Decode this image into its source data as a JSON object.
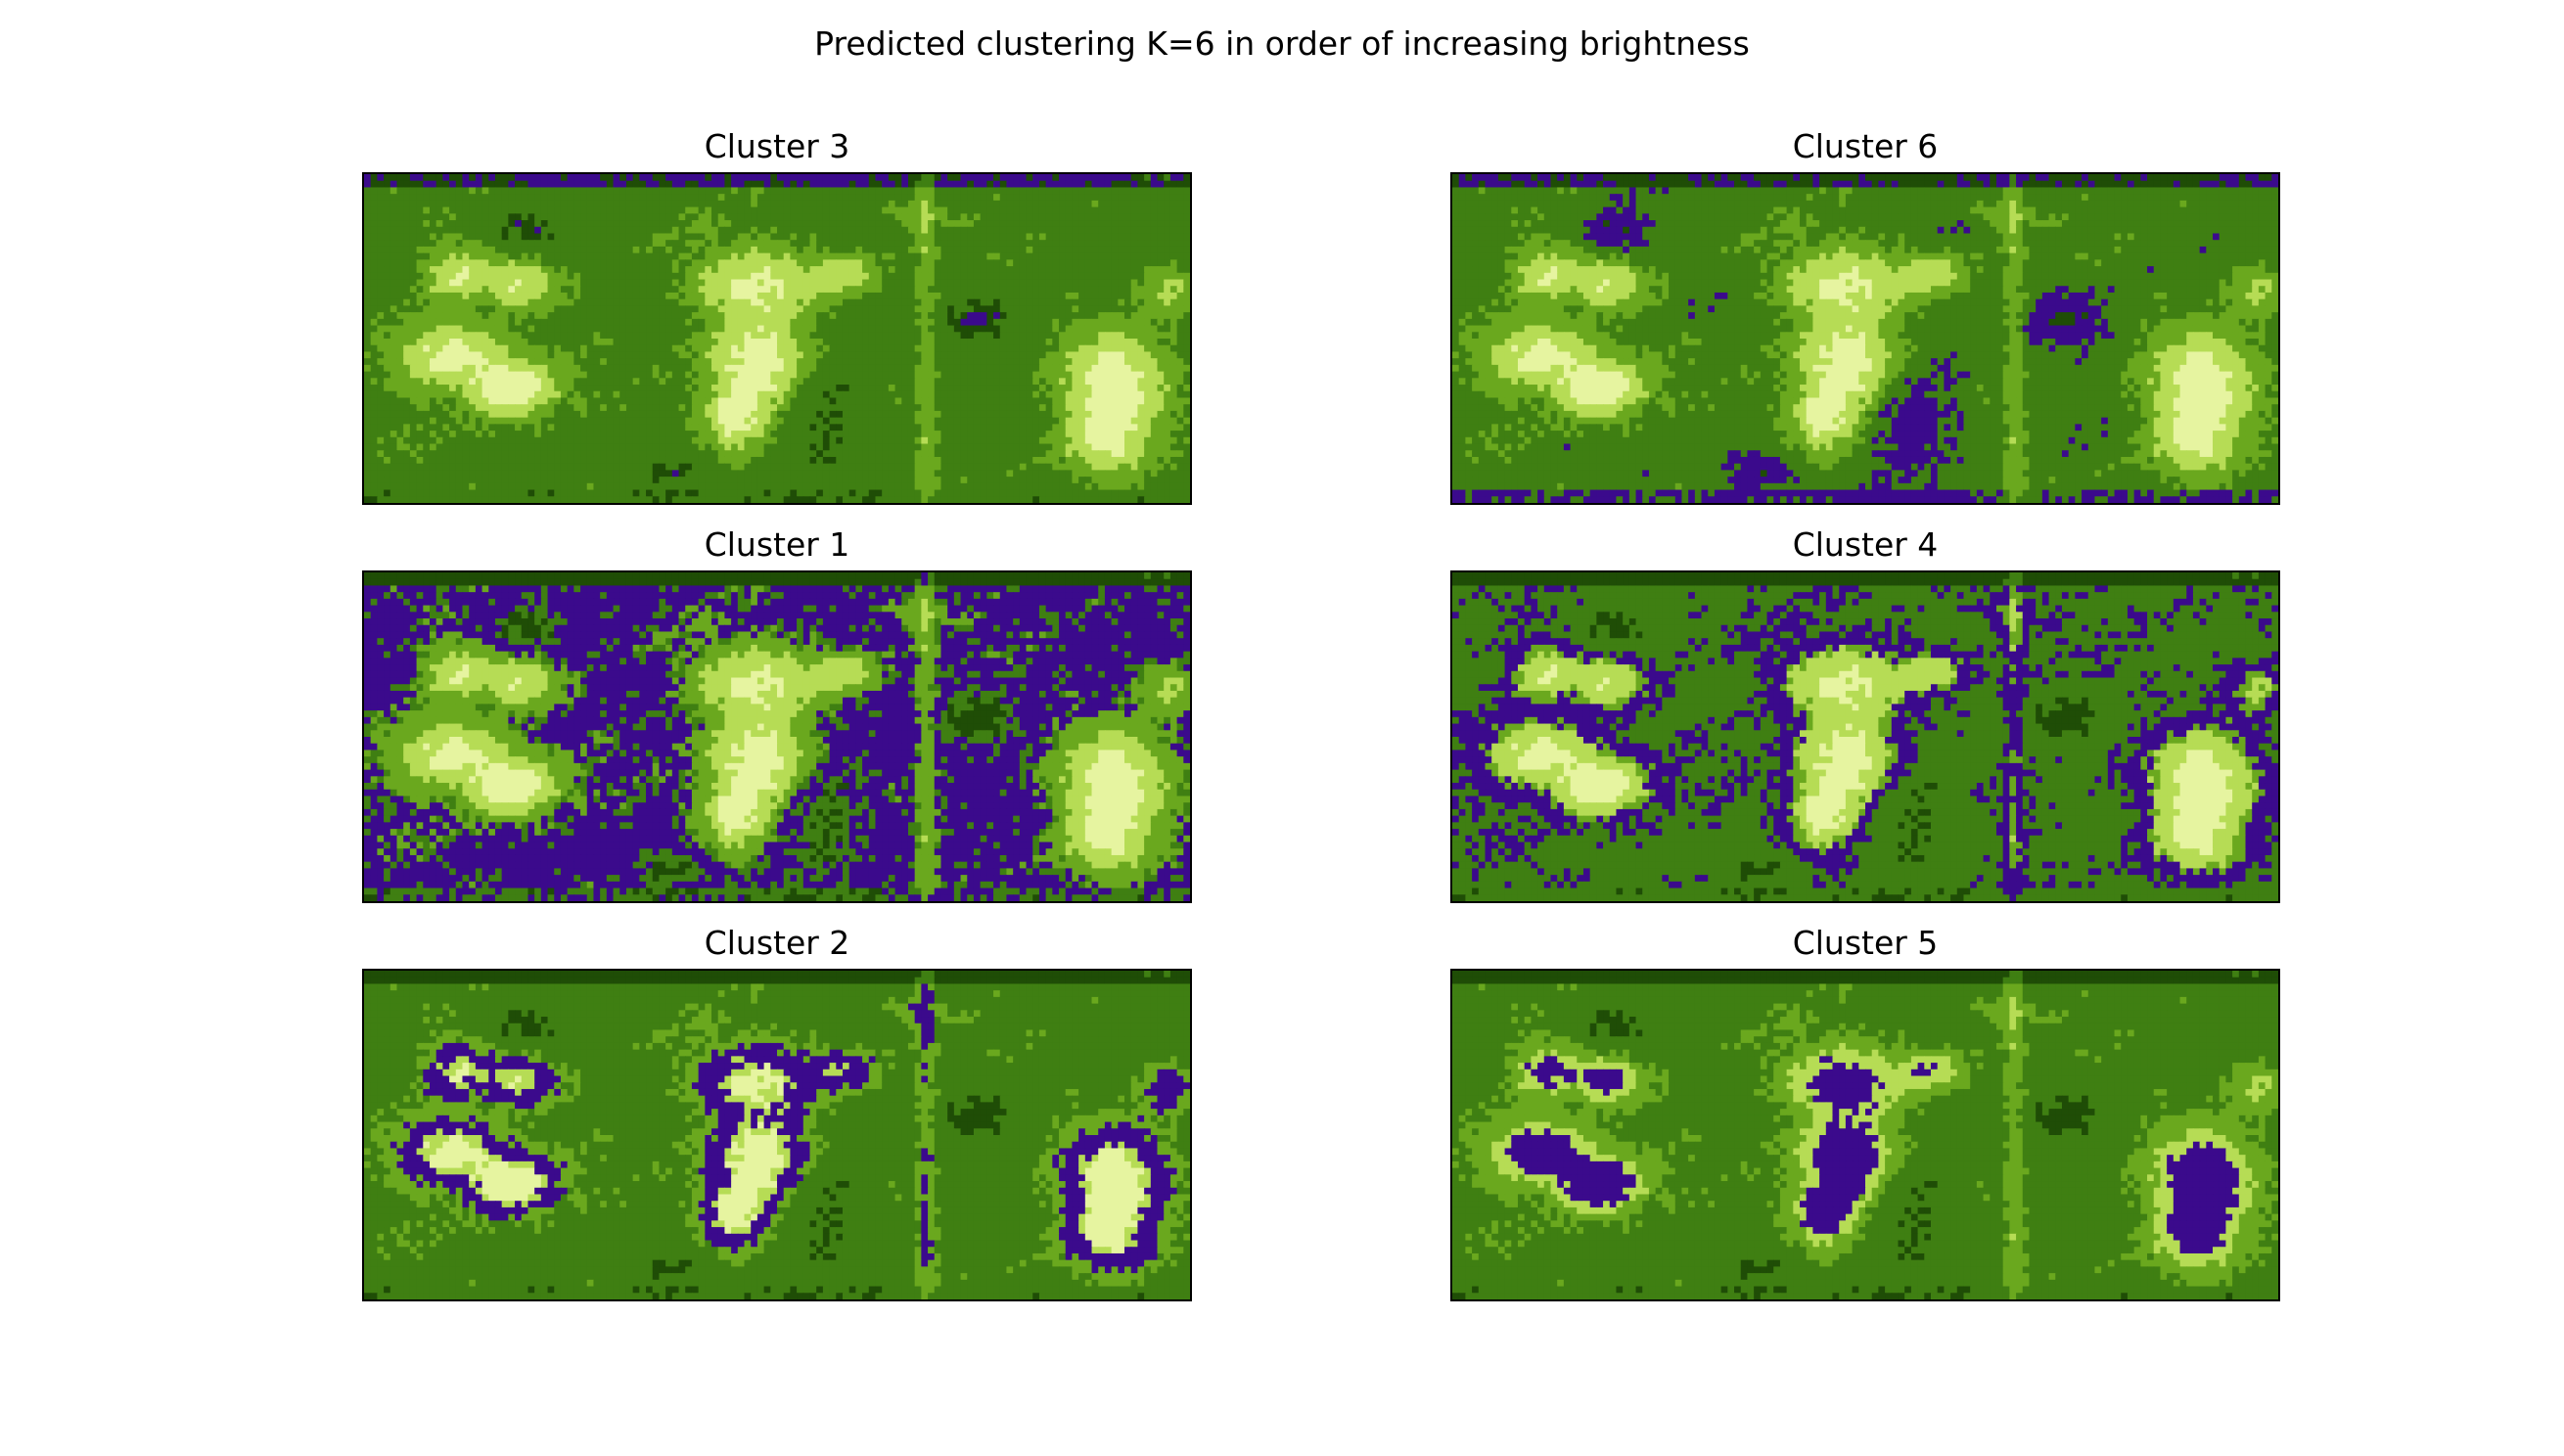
{
  "figure": {
    "suptitle": "Predicted clustering K=6 in order of increasing brightness"
  },
  "colors": {
    "mask": "#3b0a8c",
    "base_dark": "#1f4d06",
    "base_mid": "#3f7f12",
    "base_light": "#6aa81e",
    "bright": "#b6dc55",
    "very_bright": "#e6f4a0"
  },
  "panels": [
    {
      "id": "cluster-3",
      "title": "Cluster 3",
      "mask_level": 0
    },
    {
      "id": "cluster-6",
      "title": "Cluster 6",
      "mask_level": 1
    },
    {
      "id": "cluster-1",
      "title": "Cluster 1",
      "mask_level": 2
    },
    {
      "id": "cluster-4",
      "title": "Cluster 4",
      "mask_level": 3
    },
    {
      "id": "cluster-2",
      "title": "Cluster 2",
      "mask_level": 4
    },
    {
      "id": "cluster-5",
      "title": "Cluster 5",
      "mask_level": 5
    }
  ]
}
